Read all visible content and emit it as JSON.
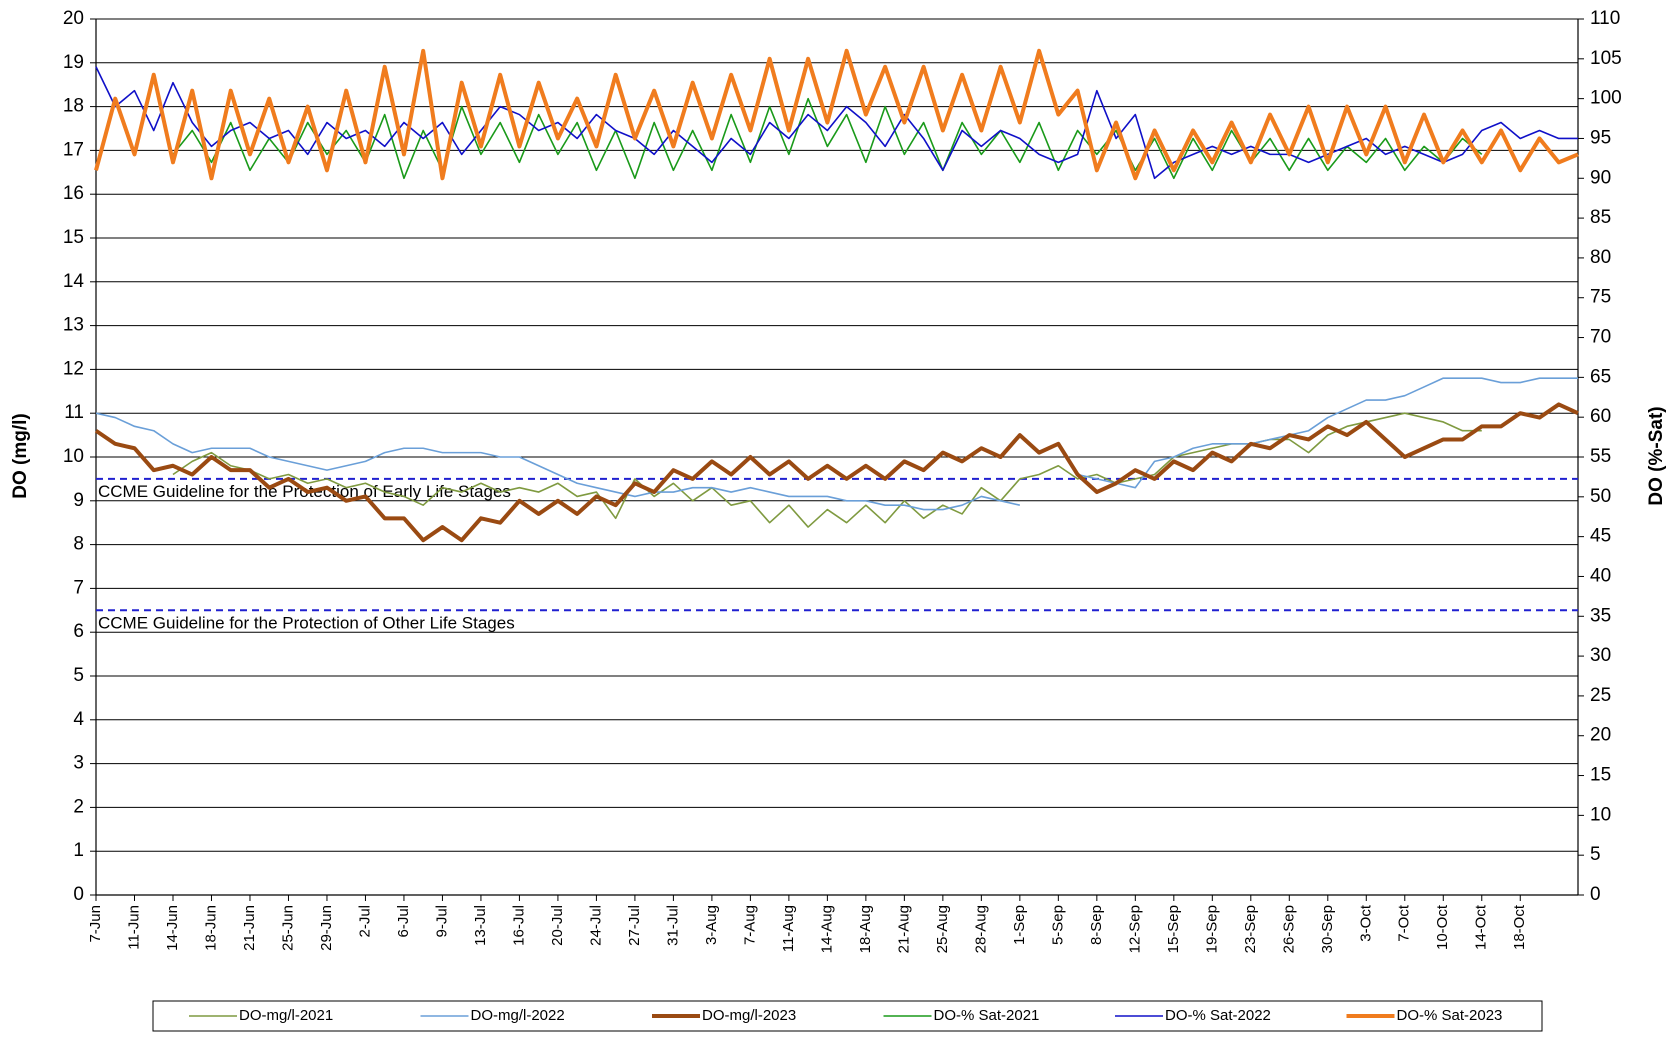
{
  "chart_data": {
    "type": "line",
    "categories": [
      "7-Jun",
      null,
      "11-Jun",
      null,
      "14-Jun",
      null,
      "18-Jun",
      null,
      "21-Jun",
      null,
      "25-Jun",
      null,
      "29-Jun",
      null,
      "2-Jul",
      null,
      "6-Jul",
      null,
      "9-Jul",
      null,
      "13-Jul",
      null,
      "16-Jul",
      null,
      "20-Jul",
      null,
      "24-Jul",
      null,
      "27-Jul",
      null,
      "31-Jul",
      null,
      "3-Aug",
      null,
      "7-Aug",
      null,
      "11-Aug",
      null,
      "14-Aug",
      null,
      "18-Aug",
      null,
      "21-Aug",
      null,
      "25-Aug",
      null,
      "28-Aug",
      null,
      "1-Sep",
      null,
      "5-Sep",
      null,
      "8-Sep",
      null,
      "12-Sep",
      null,
      "15-Sep",
      null,
      "19-Sep",
      null,
      "23-Sep",
      null,
      "26-Sep",
      null,
      "30-Sep",
      null,
      "3-Oct",
      null,
      "7-Oct",
      null,
      "10-Oct",
      null,
      "14-Oct",
      null,
      "18-Oct",
      null,
      null,
      null
    ],
    "y_label": "DO (mg/l)",
    "y2_label": "DO (%-Sat)",
    "ylim": [
      0,
      20
    ],
    "yticks": [
      0,
      1,
      2,
      3,
      4,
      5,
      6,
      7,
      8,
      9,
      10,
      11,
      12,
      13,
      14,
      15,
      16,
      17,
      18,
      19,
      20
    ],
    "y2lim": [
      0,
      110
    ],
    "y2ticks": [
      0,
      5,
      10,
      15,
      20,
      25,
      30,
      35,
      40,
      45,
      50,
      55,
      60,
      65,
      70,
      75,
      80,
      85,
      90,
      95,
      100,
      105,
      110
    ],
    "grid": true,
    "legend": "bottom",
    "annotations": [
      {
        "value": 9.5,
        "label": "CCME  Guideline for the Protection of Early Life Stages",
        "color": "#2020d0"
      },
      {
        "value": 6.5,
        "label": "CCME  Guideline for the Protection of Other Life Stages",
        "color": "#2020d0"
      }
    ],
    "series": [
      {
        "name": "DO-mg/l-2021",
        "color": "#7f9a40",
        "values": [
          null,
          null,
          null,
          null,
          9.6,
          9.9,
          10.1,
          9.8,
          9.7,
          9.5,
          9.6,
          9.4,
          9.5,
          9.3,
          9.4,
          9.2,
          9.1,
          8.9,
          9.3,
          9.2,
          9.4,
          9.2,
          9.3,
          9.2,
          9.4,
          9.1,
          9.2,
          8.6,
          9.5,
          9.1,
          9.4,
          9.0,
          9.3,
          8.9,
          9.0,
          8.5,
          8.9,
          8.4,
          8.8,
          8.5,
          8.9,
          8.5,
          9.0,
          8.6,
          8.9,
          8.7,
          9.3,
          9.0,
          9.5,
          9.6,
          9.8,
          9.5,
          9.6,
          9.4,
          9.5,
          9.6,
          10.0,
          10.1,
          10.2,
          10.3,
          10.3,
          10.4,
          10.4,
          10.1,
          10.5,
          10.7,
          10.8,
          10.9,
          11.0,
          10.9,
          10.8,
          10.6,
          10.6,
          null,
          null,
          null,
          null,
          null
        ]
      },
      {
        "name": "DO-mg/l-2022",
        "color": "#6a9fd8",
        "values": [
          11.0,
          10.9,
          10.7,
          10.6,
          10.3,
          10.1,
          10.2,
          10.2,
          10.2,
          10.0,
          9.9,
          9.8,
          9.7,
          9.8,
          9.9,
          10.1,
          10.2,
          10.2,
          10.1,
          10.1,
          10.1,
          10.0,
          10.0,
          9.8,
          9.6,
          9.4,
          9.3,
          9.2,
          9.1,
          9.2,
          9.2,
          9.3,
          9.3,
          9.2,
          9.3,
          9.2,
          9.1,
          9.1,
          9.1,
          9.0,
          9.0,
          8.9,
          8.9,
          8.8,
          8.8,
          8.9,
          9.1,
          9.0,
          8.9,
          null,
          null,
          9.6,
          9.5,
          9.4,
          9.3,
          9.9,
          10.0,
          10.2,
          10.3,
          10.3,
          10.3,
          10.4,
          10.5,
          10.6,
          10.9,
          11.1,
          11.3,
          11.3,
          11.4,
          11.6,
          11.8,
          11.8,
          11.8,
          11.7,
          11.7,
          11.8,
          11.8,
          11.8
        ]
      },
      {
        "name": "DO-mg/l-2023",
        "color": "#9a4a12",
        "values": [
          10.6,
          10.3,
          10.2,
          9.7,
          9.8,
          9.6,
          10.0,
          9.7,
          9.7,
          9.3,
          9.5,
          9.2,
          9.3,
          9.0,
          9.1,
          8.6,
          8.6,
          8.1,
          8.4,
          8.1,
          8.6,
          8.5,
          9.0,
          8.7,
          9.0,
          8.7,
          9.1,
          8.9,
          9.4,
          9.2,
          9.7,
          9.5,
          9.9,
          9.6,
          10.0,
          9.6,
          9.9,
          9.5,
          9.8,
          9.5,
          9.8,
          9.5,
          9.9,
          9.7,
          10.1,
          9.9,
          10.2,
          10.0,
          10.5,
          10.1,
          10.3,
          9.6,
          9.2,
          9.4,
          9.7,
          9.5,
          9.9,
          9.7,
          10.1,
          9.9,
          10.3,
          10.2,
          10.5,
          10.4,
          10.7,
          10.5,
          10.8,
          10.4,
          10.0,
          10.2,
          10.4,
          10.4,
          10.7,
          10.7,
          11.0,
          10.9,
          11.2,
          11.0
        ]
      },
      {
        "name": "DO-% Sat-2021",
        "color": "#1a9a1a",
        "axis": "y2",
        "values": [
          null,
          null,
          null,
          null,
          93,
          96,
          92,
          97,
          91,
          95,
          92,
          97,
          93,
          96,
          92,
          98,
          90,
          96,
          91,
          99,
          93,
          97,
          92,
          98,
          93,
          97,
          91,
          96,
          90,
          97,
          91,
          96,
          91,
          98,
          92,
          99,
          93,
          100,
          94,
          98,
          92,
          99,
          93,
          97,
          91,
          97,
          93,
          96,
          92,
          97,
          91,
          96,
          93,
          96,
          91,
          95,
          90,
          95,
          91,
          96,
          92,
          95,
          91,
          95,
          91,
          94,
          92,
          95,
          91,
          94,
          92,
          95,
          93,
          null,
          null,
          null,
          null,
          null
        ]
      },
      {
        "name": "DO-% Sat-2022",
        "color": "#1010c8",
        "axis": "y2",
        "values": [
          104,
          99,
          101,
          96,
          102,
          97,
          94,
          96,
          97,
          95,
          96,
          93,
          97,
          95,
          96,
          94,
          97,
          95,
          97,
          93,
          96,
          99,
          98,
          96,
          97,
          95,
          98,
          96,
          95,
          93,
          96,
          94,
          92,
          95,
          93,
          97,
          95,
          98,
          96,
          99,
          97,
          94,
          98,
          95,
          91,
          96,
          94,
          96,
          95,
          93,
          92,
          93,
          101,
          95,
          98,
          90,
          92,
          93,
          94,
          93,
          94,
          93,
          93,
          92,
          93,
          94,
          95,
          93,
          94,
          93,
          92,
          93,
          96,
          97,
          95,
          96,
          95,
          95
        ]
      },
      {
        "name": "DO-% Sat-2023",
        "color": "#f07c1e",
        "axis": "y2",
        "values": [
          91,
          100,
          93,
          103,
          92,
          101,
          90,
          101,
          93,
          100,
          92,
          99,
          91,
          101,
          92,
          104,
          93,
          106,
          90,
          102,
          94,
          103,
          94,
          102,
          95,
          100,
          94,
          103,
          95,
          101,
          94,
          102,
          95,
          103,
          96,
          105,
          96,
          105,
          97,
          106,
          98,
          104,
          97,
          104,
          96,
          103,
          96,
          104,
          97,
          106,
          98,
          101,
          91,
          97,
          90,
          96,
          91,
          96,
          92,
          97,
          92,
          98,
          93,
          99,
          92,
          99,
          93,
          99,
          92,
          98,
          92,
          96,
          92,
          96,
          91,
          95,
          92,
          93
        ]
      }
    ]
  }
}
